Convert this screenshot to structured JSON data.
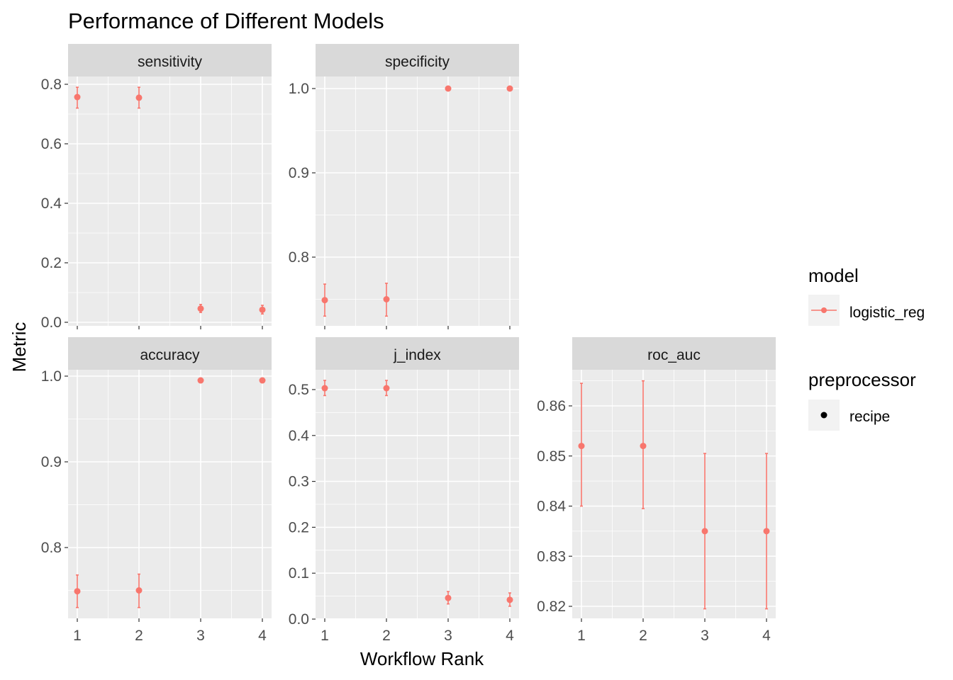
{
  "chart_data": {
    "type": "scatter",
    "title": "Performance of Different Models",
    "xlabel": "Workflow Rank",
    "ylabel": "Metric",
    "x": [
      1,
      2,
      3,
      4
    ],
    "grid": true,
    "legend_placement": "right",
    "series_color": "#F8766D",
    "panels": [
      {
        "name": "sensitivity",
        "ylim": [
          0,
          0.8
        ],
        "yticks": [
          0.0,
          0.2,
          0.4,
          0.6,
          0.8
        ],
        "ytick_labels": [
          "0.0",
          "0.2",
          "0.4",
          "0.6",
          "0.8"
        ],
        "values": [
          0.757,
          0.755,
          0.046,
          0.042
        ],
        "lower": [
          0.72,
          0.72,
          0.033,
          0.028
        ],
        "upper": [
          0.79,
          0.79,
          0.06,
          0.057
        ]
      },
      {
        "name": "specificity",
        "ylim": [
          0.74,
          1.0
        ],
        "yticks": [
          0.8,
          0.9,
          1.0
        ],
        "ytick_labels": [
          "0.8",
          "0.9",
          "1.0"
        ],
        "values": [
          0.749,
          0.75,
          1.0,
          1.0
        ],
        "lower": [
          0.73,
          0.73,
          1.0,
          1.0
        ],
        "upper": [
          0.768,
          0.769,
          1.0,
          1.0
        ]
      },
      {
        "name": "accuracy",
        "ylim": [
          0.73,
          1.0
        ],
        "yticks": [
          0.8,
          0.9,
          1.0
        ],
        "ytick_labels": [
          "0.8",
          "0.9",
          "1.0"
        ],
        "values": [
          0.749,
          0.75,
          0.995,
          0.995
        ],
        "lower": [
          0.73,
          0.73,
          0.995,
          0.995
        ],
        "upper": [
          0.768,
          0.769,
          0.995,
          0.995
        ]
      },
      {
        "name": "j_index",
        "ylim": [
          0,
          0.5
        ],
        "yticks": [
          0.0,
          0.1,
          0.2,
          0.3,
          0.4,
          0.5
        ],
        "ytick_labels": [
          "0.0",
          "0.1",
          "0.2",
          "0.3",
          "0.4",
          "0.5"
        ],
        "values": [
          0.503,
          0.503,
          0.046,
          0.042
        ],
        "lower": [
          0.487,
          0.487,
          0.033,
          0.028
        ],
        "upper": [
          0.52,
          0.52,
          0.06,
          0.057
        ]
      },
      {
        "name": "roc_auc",
        "ylim": [
          0.82,
          0.865
        ],
        "yticks": [
          0.82,
          0.83,
          0.84,
          0.85,
          0.86
        ],
        "ytick_labels": [
          "0.82",
          "0.83",
          "0.84",
          "0.85",
          "0.86"
        ],
        "values": [
          0.852,
          0.852,
          0.835,
          0.835
        ],
        "lower": [
          0.84,
          0.8395,
          0.8195,
          0.8195
        ],
        "upper": [
          0.8645,
          0.865,
          0.8505,
          0.8505
        ]
      }
    ],
    "legends": [
      {
        "title": "model",
        "entries": [
          "logistic_reg"
        ]
      },
      {
        "title": "preprocessor",
        "entries": [
          "recipe"
        ]
      }
    ]
  }
}
